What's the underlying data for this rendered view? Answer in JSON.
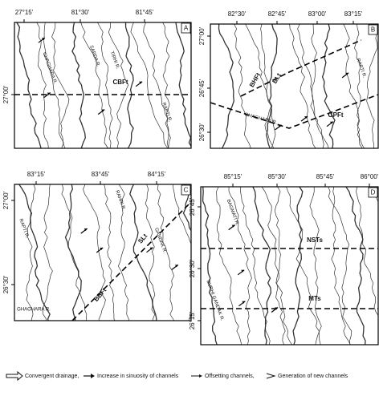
{
  "panels": [
    {
      "letter": "A",
      "top_ticks": [
        "27°15'",
        "81°30'",
        "81°45'"
      ],
      "left_ticks": [
        "27°00'"
      ],
      "labels": [
        "GHAGHARA R.",
        "SARDA R.",
        "TIRHI R.",
        "CBFt",
        "RAPTI R."
      ]
    },
    {
      "letter": "B",
      "top_ticks": [
        "82°30'",
        "82°45'",
        "83°00'",
        "83°15'"
      ],
      "left_ticks": [
        "27°00'",
        "26°45'",
        "26°30'"
      ],
      "labels": [
        "BHFt",
        "BLt",
        "GPFt",
        "GHAGHARA R.",
        "RAPTI R."
      ]
    },
    {
      "letter": "C",
      "top_ticks": [
        "83°15'",
        "83°45'",
        "84°15'"
      ],
      "left_ticks": [
        "27°00'",
        "26°30'"
      ],
      "labels": [
        "RAPTI R.",
        "RAHRI R.",
        "GANDAK R.",
        "SLt",
        "BBFt",
        "GHAGHARA R."
      ]
    },
    {
      "letter": "D",
      "top_ticks": [
        "85°15'",
        "85°30'",
        "85°45'",
        "86°00'"
      ],
      "left_ticks": [
        "26°45'",
        "26°30'",
        "26°15'"
      ],
      "labels": [
        "BAGMATI R.",
        "NSTs",
        "MTs",
        "BURHI GANDAK R."
      ]
    }
  ],
  "legend": [
    "Convergent drainage,",
    "Increase in sinuosity of channels",
    "Offsetting channels,",
    "Generation of new channels"
  ]
}
